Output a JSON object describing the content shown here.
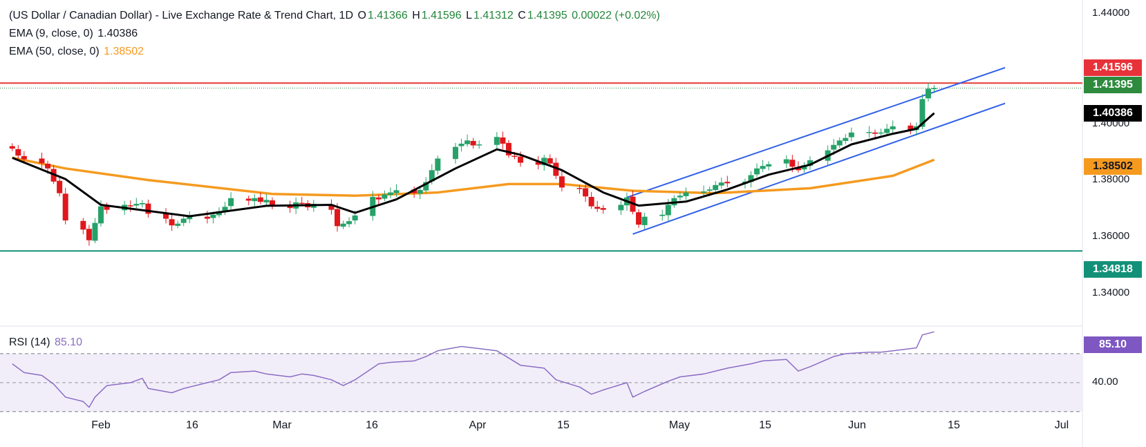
{
  "header": {
    "title": "(US Dollar / Canadian Dollar) - Live Exchange Rate & Trend Chart, 1D",
    "o_label": "O",
    "o_value": "1.41366",
    "h_label": "H",
    "h_value": "1.41596",
    "l_label": "L",
    "l_value": "1.41312",
    "c_label": "C",
    "c_value": "1.41395",
    "change": "0.00022 (+0.02%)",
    "ema9_label": "EMA (9, close, 0)",
    "ema9_value": "1.40386",
    "ema50_label": "EMA (50, close, 0)",
    "ema50_value": "1.38502",
    "rsi_label": "RSI (14)",
    "rsi_value": "85.10"
  },
  "price_tags": {
    "resistance": "1.41596",
    "last": "1.41395",
    "ema9": "1.40386",
    "ema50": "1.38502",
    "support": "1.34818",
    "rsi": "85.10"
  },
  "colors": {
    "up": "#26a269",
    "down": "#e0171b",
    "ema9": "#000000",
    "ema50": "#f59a1f",
    "channel": "#2f5fe8",
    "resistance": "#e53935",
    "support": "#129178",
    "rsi": "#8a6cc4"
  },
  "chart_data": [
    {
      "type": "candlestick",
      "title": "(US Dollar / Canadian Dollar) - Live Exchange Rate & Trend Chart, 1D",
      "ylim": [
        1.3315,
        1.4445
      ],
      "yticks": [
        "1.44000",
        "1.40000",
        "1.38000",
        "1.36000",
        "1.34000"
      ],
      "xticks": [
        "Feb",
        "16",
        "Mar",
        "16",
        "Apr",
        "15",
        "May",
        "15",
        "Jun",
        "15",
        "Jul"
      ],
      "xtick_dates": [
        "2024-02-01",
        "2024-02-16",
        "2024-03-01",
        "2024-03-16",
        "2024-04-01",
        "2024-04-15",
        "2024-05-01",
        "2024-05-15",
        "2024-06-01",
        "2024-06-15",
        "2024-07-01"
      ],
      "closes": [
        [
          "2024-01-17",
          1.3895
        ],
        [
          "2024-01-18",
          1.3867
        ],
        [
          "2024-01-19",
          1.3852
        ],
        [
          "2024-01-22",
          1.3836
        ],
        [
          "2024-01-23",
          1.3815
        ],
        [
          "2024-01-24",
          1.3762
        ],
        [
          "2024-01-25",
          1.3715
        ],
        [
          "2024-01-26",
          1.3605
        ],
        [
          "2024-01-29",
          1.3568
        ],
        [
          "2024-01-30",
          1.3525
        ],
        [
          "2024-01-31",
          1.3595
        ],
        [
          "2024-02-01",
          1.3662
        ],
        [
          "2024-02-02",
          1.3648
        ],
        [
          "2024-02-05",
          1.3668
        ],
        [
          "2024-02-06",
          1.3662
        ],
        [
          "2024-02-07",
          1.3672
        ],
        [
          "2024-02-08",
          1.3675
        ],
        [
          "2024-02-09",
          1.3632
        ],
        [
          "2024-02-12",
          1.3612
        ],
        [
          "2024-02-13",
          1.3585
        ],
        [
          "2024-02-14",
          1.3592
        ],
        [
          "2024-02-15",
          1.3612
        ],
        [
          "2024-02-16",
          1.3622
        ],
        [
          "2024-02-19",
          1.3612
        ],
        [
          "2024-02-20",
          1.3628
        ],
        [
          "2024-02-21",
          1.3642
        ],
        [
          "2024-02-22",
          1.366
        ],
        [
          "2024-02-23",
          1.3695
        ],
        [
          "2024-02-26",
          1.3685
        ],
        [
          "2024-02-27",
          1.3695
        ],
        [
          "2024-02-28",
          1.368
        ],
        [
          "2024-02-29",
          1.3688
        ],
        [
          "2024-03-01",
          1.3666
        ],
        [
          "2024-03-04",
          1.3655
        ],
        [
          "2024-03-05",
          1.3678
        ],
        [
          "2024-03-06",
          1.3672
        ],
        [
          "2024-03-07",
          1.3658
        ],
        [
          "2024-03-08",
          1.3672
        ],
        [
          "2024-03-11",
          1.3648
        ],
        [
          "2024-03-12",
          1.3582
        ],
        [
          "2024-03-13",
          1.3592
        ],
        [
          "2024-03-14",
          1.3602
        ],
        [
          "2024-03-15",
          1.3625
        ],
        [
          "2024-03-18",
          1.37
        ],
        [
          "2024-03-19",
          1.369
        ],
        [
          "2024-03-20",
          1.371
        ],
        [
          "2024-03-21",
          1.3718
        ],
        [
          "2024-03-22",
          1.3727
        ],
        [
          "2024-03-25",
          1.3715
        ],
        [
          "2024-03-26",
          1.3728
        ],
        [
          "2024-03-27",
          1.376
        ],
        [
          "2024-03-28",
          1.3808
        ],
        [
          "2024-03-29",
          1.3855
        ],
        [
          "2024-04-01",
          1.3902
        ],
        [
          "2024-04-02",
          1.3915
        ],
        [
          "2024-04-03",
          1.3928
        ],
        [
          "2024-04-04",
          1.3908
        ],
        [
          "2024-04-05",
          1.3912
        ],
        [
          "2024-04-08",
          1.3942
        ],
        [
          "2024-04-09",
          1.3915
        ],
        [
          "2024-04-10",
          1.3868
        ],
        [
          "2024-04-11",
          1.3865
        ],
        [
          "2024-04-12",
          1.3838
        ],
        [
          "2024-04-15",
          1.383
        ],
        [
          "2024-04-16",
          1.3858
        ],
        [
          "2024-04-17",
          1.3835
        ],
        [
          "2024-04-18",
          1.3785
        ],
        [
          "2024-04-19",
          1.3738
        ],
        [
          "2024-04-22",
          1.3732
        ],
        [
          "2024-04-23",
          1.3702
        ],
        [
          "2024-04-24",
          1.3662
        ],
        [
          "2024-04-25",
          1.3652
        ],
        [
          "2024-04-26",
          1.3648
        ],
        [
          "2024-04-29",
          1.3668
        ],
        [
          "2024-04-30",
          1.3698
        ],
        [
          "2024-05-01",
          1.364
        ],
        [
          "2024-05-02",
          1.3588
        ],
        [
          "2024-05-03",
          1.362
        ],
        [
          "2024-05-06",
          1.3628
        ],
        [
          "2024-05-07",
          1.3668
        ],
        [
          "2024-05-08",
          1.3695
        ],
        [
          "2024-05-09",
          1.3705
        ],
        [
          "2024-05-10",
          1.3718
        ],
        [
          "2024-05-13",
          1.3722
        ],
        [
          "2024-05-14",
          1.373
        ],
        [
          "2024-05-15",
          1.3748
        ],
        [
          "2024-05-16",
          1.3758
        ],
        [
          "2024-05-17",
          1.3755
        ],
        [
          "2024-05-20",
          1.3762
        ],
        [
          "2024-05-21",
          1.3788
        ],
        [
          "2024-05-22",
          1.3815
        ],
        [
          "2024-05-23",
          1.3825
        ],
        [
          "2024-05-24",
          1.3832
        ],
        [
          "2024-05-27",
          1.3852
        ],
        [
          "2024-05-28",
          1.3822
        ],
        [
          "2024-05-29",
          1.3808
        ],
        [
          "2024-05-30",
          1.3828
        ],
        [
          "2024-05-31",
          1.3848
        ],
        [
          "2024-06-03",
          1.3888
        ],
        [
          "2024-06-04",
          1.391
        ],
        [
          "2024-06-05",
          1.3928
        ],
        [
          "2024-06-06",
          1.3938
        ],
        [
          "2024-06-07",
          1.396
        ],
        [
          "2024-06-10",
          1.3962
        ],
        [
          "2024-06-11",
          1.3955
        ],
        [
          "2024-06-12",
          1.396
        ],
        [
          "2024-06-13",
          1.3975
        ],
        [
          "2024-06-14",
          1.3985
        ],
        [
          "2024-06-17",
          1.3972
        ],
        [
          "2024-06-18",
          1.3985
        ],
        [
          "2024-06-19",
          1.4095
        ],
        [
          "2024-06-20",
          1.4137
        ],
        [
          "2024-06-21",
          1.41395
        ]
      ],
      "ema9": [
        [
          "2024-01-17",
          1.3858
        ],
        [
          "2024-01-26",
          1.3772
        ],
        [
          "2024-02-01",
          1.3668
        ],
        [
          "2024-02-16",
          1.3622
        ],
        [
          "2024-02-29",
          1.3664
        ],
        [
          "2024-03-11",
          1.3668
        ],
        [
          "2024-03-15",
          1.3636
        ],
        [
          "2024-03-22",
          1.369
        ],
        [
          "2024-04-01",
          1.3815
        ],
        [
          "2024-04-08",
          1.3892
        ],
        [
          "2024-04-12",
          1.387
        ],
        [
          "2024-04-19",
          1.3808
        ],
        [
          "2024-04-26",
          1.3718
        ],
        [
          "2024-05-02",
          1.3665
        ],
        [
          "2024-05-10",
          1.3681
        ],
        [
          "2024-05-17",
          1.373
        ],
        [
          "2024-05-24",
          1.379
        ],
        [
          "2024-05-31",
          1.383
        ],
        [
          "2024-06-07",
          1.3912
        ],
        [
          "2024-06-14",
          1.3955
        ],
        [
          "2024-06-18",
          1.3975
        ],
        [
          "2024-06-21",
          1.40386
        ]
      ],
      "ema50": [
        [
          "2024-01-17",
          1.3858
        ],
        [
          "2024-01-26",
          1.3815
        ],
        [
          "2024-02-09",
          1.3768
        ],
        [
          "2024-03-01",
          1.3712
        ],
        [
          "2024-03-15",
          1.3705
        ],
        [
          "2024-03-29",
          1.3718
        ],
        [
          "2024-04-10",
          1.3752
        ],
        [
          "2024-04-19",
          1.3752
        ],
        [
          "2024-05-01",
          1.3725
        ],
        [
          "2024-05-15",
          1.3715
        ],
        [
          "2024-05-31",
          1.3735
        ],
        [
          "2024-06-14",
          1.3785
        ],
        [
          "2024-06-21",
          1.38502
        ]
      ],
      "channel_upper": [
        [
          "2024-04-30",
          1.3698
        ],
        [
          "2024-07-03",
          1.4222
        ]
      ],
      "channel_lower": [
        [
          "2024-05-01",
          1.355
        ],
        [
          "2024-07-03",
          1.4078
        ]
      ],
      "resistance": 1.41596,
      "support": 1.34818,
      "last": 1.41395
    },
    {
      "type": "line",
      "title": "RSI (14)",
      "ylim": [
        28,
        90
      ],
      "yticks": [
        "40.00"
      ],
      "upper_band": 70,
      "lower_band": 30,
      "series": [
        {
          "name": "RSI (14)",
          "values": [
            [
              "2024-01-17",
              63
            ],
            [
              "2024-01-19",
              57
            ],
            [
              "2024-01-22",
              55
            ],
            [
              "2024-01-24",
              49
            ],
            [
              "2024-01-26",
              40
            ],
            [
              "2024-01-29",
              37
            ],
            [
              "2024-01-30",
              33
            ],
            [
              "2024-01-31",
              40
            ],
            [
              "2024-02-02",
              48
            ],
            [
              "2024-02-06",
              50
            ],
            [
              "2024-02-08",
              53
            ],
            [
              "2024-02-09",
              46
            ],
            [
              "2024-02-13",
              43
            ],
            [
              "2024-02-15",
              46
            ],
            [
              "2024-02-19",
              50
            ],
            [
              "2024-02-21",
              52
            ],
            [
              "2024-02-23",
              57
            ],
            [
              "2024-02-27",
              58
            ],
            [
              "2024-02-29",
              56
            ],
            [
              "2024-03-04",
              54
            ],
            [
              "2024-03-06",
              56
            ],
            [
              "2024-03-08",
              55
            ],
            [
              "2024-03-11",
              52
            ],
            [
              "2024-03-13",
              48
            ],
            [
              "2024-03-15",
              52
            ],
            [
              "2024-03-19",
              63
            ],
            [
              "2024-03-21",
              64
            ],
            [
              "2024-03-25",
              65
            ],
            [
              "2024-03-27",
              68
            ],
            [
              "2024-03-29",
              72
            ],
            [
              "2024-04-02",
              75
            ],
            [
              "2024-04-04",
              74
            ],
            [
              "2024-04-08",
              72
            ],
            [
              "2024-04-10",
              67
            ],
            [
              "2024-04-12",
              62
            ],
            [
              "2024-04-16",
              60
            ],
            [
              "2024-04-18",
              52
            ],
            [
              "2024-04-22",
              47
            ],
            [
              "2024-04-24",
              42
            ],
            [
              "2024-04-26",
              45
            ],
            [
              "2024-04-30",
              50
            ],
            [
              "2024-05-01",
              40
            ],
            [
              "2024-05-03",
              44
            ],
            [
              "2024-05-07",
              51
            ],
            [
              "2024-05-09",
              54
            ],
            [
              "2024-05-13",
              56
            ],
            [
              "2024-05-15",
              58
            ],
            [
              "2024-05-17",
              60
            ],
            [
              "2024-05-21",
              63
            ],
            [
              "2024-05-23",
              65
            ],
            [
              "2024-05-27",
              66
            ],
            [
              "2024-05-29",
              58
            ],
            [
              "2024-05-31",
              61
            ],
            [
              "2024-06-04",
              68
            ],
            [
              "2024-06-06",
              70
            ],
            [
              "2024-06-10",
              71
            ],
            [
              "2024-06-12",
              71
            ],
            [
              "2024-06-14",
              72
            ],
            [
              "2024-06-18",
              74
            ],
            [
              "2024-06-19",
              83
            ],
            [
              "2024-06-21",
              85.1
            ]
          ]
        }
      ]
    }
  ]
}
